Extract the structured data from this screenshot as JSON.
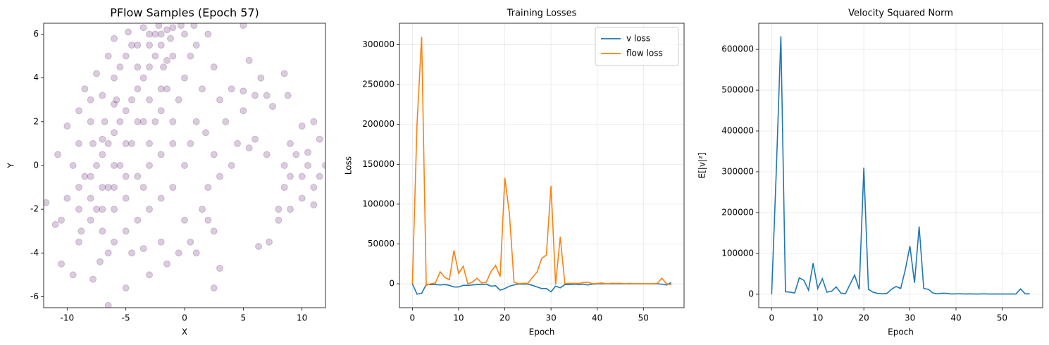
{
  "chart_data": [
    {
      "type": "scatter",
      "title": "PFlow Samples (Epoch 57)",
      "x_label": "X",
      "y_label": "Y",
      "xlim": [
        -12,
        12
      ],
      "ylim": [
        -6.5,
        6.5
      ],
      "xticks": [
        -10,
        -5,
        0,
        5,
        10
      ],
      "yticks": [
        -6,
        -4,
        -2,
        0,
        2,
        4,
        6
      ],
      "grid": false,
      "color": "#440154",
      "alpha": 0.2,
      "x": [
        -9,
        -8.5,
        -8,
        -7.5,
        -7,
        -7,
        -6.5,
        -6,
        -6,
        -5.5,
        -5,
        -5,
        -4.5,
        -4,
        -4,
        -3.5,
        -3,
        -3,
        -2.5,
        -2,
        -2,
        -1.5,
        -2.5,
        -3,
        -1.8,
        -1,
        -1.5,
        -2,
        -3.5,
        -4.5,
        -5.5,
        -6.5,
        -7.5,
        -8,
        -9,
        -10,
        -10.5,
        -9.5,
        -9,
        -8,
        -8,
        -7,
        -6,
        -5.5,
        -5,
        -4,
        -3.5,
        -1,
        0,
        0.5,
        0,
        -0.5,
        -1,
        -1,
        -2,
        -3,
        -4,
        -5,
        -6,
        -7,
        -6.5,
        -6,
        -5,
        -4,
        -3,
        -2,
        -1,
        0,
        0.5,
        1,
        1.5,
        1,
        2,
        2.5,
        0,
        -0.5,
        0.5,
        -2,
        -3.5,
        -5,
        -6.5,
        -7.8,
        -9.5,
        -10.5,
        -11,
        -11.8,
        -10.8,
        -10,
        -9,
        -8.5,
        -7.5,
        -6.5,
        -6,
        -4.8,
        -5.8,
        -6.8,
        -7.8,
        -8.8,
        -7.2,
        -4.5,
        -3,
        -1.5,
        1.5,
        2,
        2.5,
        1.8,
        3,
        4,
        3.5,
        4.5,
        4,
        3,
        2.5,
        2,
        3,
        2.5,
        1,
        5,
        5.5,
        5,
        6,
        6.5,
        7,
        7.5,
        7,
        6,
        5.5,
        6.3,
        7.2,
        8,
        8.5,
        9,
        9.5,
        10,
        10.5,
        11,
        11.5,
        12,
        10,
        11,
        9,
        8.5,
        9,
        8,
        10,
        11,
        8.8,
        8.5,
        10.5,
        11.5,
        -3,
        -2.5,
        -4,
        -2,
        -1.5,
        -3,
        -2.2,
        -1.2,
        -4.5,
        -6,
        -7,
        -5,
        -3.5,
        -8,
        -9,
        -6,
        -7,
        0.8,
        -0.3,
        5
      ],
      "y": [
        -1,
        -0.5,
        -1.5,
        0,
        0.5,
        -1,
        1,
        0,
        1.5,
        2,
        1,
        2.5,
        3,
        2,
        3.5,
        4,
        3,
        4.5,
        5,
        5.5,
        6,
        6.2,
        6,
        5.5,
        4.5,
        5,
        3.5,
        2.5,
        2,
        1,
        0,
        -1,
        -2,
        -2.5,
        -2,
        -1.5,
        -2.5,
        0,
        1,
        2,
        3,
        3.2,
        4,
        4.5,
        5,
        5.5,
        6.3,
        6.3,
        6,
        5,
        4,
        3,
        2,
        1,
        0.5,
        0,
        -0.5,
        -1.5,
        -2,
        -3,
        -4,
        -3.5,
        -3,
        -2.5,
        -2,
        -1.5,
        -1,
        0,
        1,
        2,
        3.5,
        5.5,
        6,
        4.5,
        -2.5,
        -4,
        -3.5,
        -3.5,
        -3.8,
        -5.6,
        -6.4,
        -5.2,
        -5,
        -4.5,
        -2.7,
        -1.7,
        0.5,
        1.8,
        2.5,
        3.5,
        4.2,
        5,
        5.8,
        6.1,
        3,
        2,
        1,
        -3,
        -4.4,
        -4,
        -5,
        -4.5,
        -2,
        -1,
        0.5,
        1.5,
        3,
        3.5,
        2,
        1,
        0,
        -0.5,
        -3,
        -2.5,
        -4.7,
        -5.6,
        -4,
        3.4,
        4.8,
        2.5,
        3.2,
        4,
        3.2,
        2.7,
        0.5,
        1.2,
        0.8,
        -3.7,
        -3.5,
        -2,
        -1,
        -0.5,
        0.5,
        -0.5,
        0,
        -1,
        -0.5,
        0,
        1.8,
        2,
        1,
        0,
        -2,
        -2.5,
        -1.5,
        -1.8,
        3.2,
        4.2,
        0.6,
        1.2,
        1,
        2,
        4.5,
        3.5,
        4.8,
        6,
        6.4,
        5.8,
        5.5,
        2.8,
        1.2,
        -0.5,
        -1,
        -0.5,
        -3.5,
        -1,
        -2,
        6.4,
        6.4,
        6.4
      ]
    },
    {
      "type": "line",
      "title": "Training Losses",
      "x_label": "Epoch",
      "y_label": "Loss",
      "xlim": [
        -2.8,
        58.8
      ],
      "ylim": [
        -30000,
        327000
      ],
      "xticks": [
        0,
        10,
        20,
        30,
        40,
        50
      ],
      "yticks": [
        0,
        50000,
        100000,
        150000,
        200000,
        250000,
        300000
      ],
      "grid": true,
      "legend": "upper right",
      "x": [
        0,
        1,
        2,
        3,
        4,
        5,
        6,
        7,
        8,
        9,
        10,
        11,
        12,
        13,
        14,
        15,
        16,
        17,
        18,
        19,
        20,
        21,
        22,
        23,
        24,
        25,
        26,
        27,
        28,
        29,
        30,
        31,
        32,
        33,
        34,
        35,
        36,
        37,
        38,
        39,
        40,
        41,
        42,
        43,
        44,
        45,
        46,
        47,
        48,
        49,
        50,
        51,
        52,
        53,
        54,
        55,
        56
      ],
      "series": [
        {
          "name": "v loss",
          "color": "#1f77b4",
          "values": [
            0,
            -13000,
            -12000,
            -1000,
            -1000,
            -1000,
            -1500,
            -1000,
            -2000,
            -4000,
            -4000,
            -2000,
            -2000,
            -1500,
            -1000,
            -1000,
            -500,
            -3000,
            -2500,
            -8000,
            -6000,
            -3000,
            -1500,
            -500,
            -500,
            -500,
            -2000,
            -4000,
            -6000,
            -6000,
            -10000,
            -3000,
            -5000,
            -1000,
            -1000,
            -500,
            -1000,
            -500,
            -1500,
            -500,
            0,
            0,
            0,
            0,
            0,
            0,
            0,
            0,
            0,
            0,
            0,
            0,
            0,
            0,
            -500,
            -1500,
            1500
          ]
        },
        {
          "name": "flow loss",
          "color": "#ff7f0e",
          "values": [
            0,
            200000,
            310000,
            -2000,
            0,
            1000,
            15000,
            8000,
            5000,
            42000,
            13000,
            22000,
            0,
            2000,
            7000,
            1000,
            2000,
            15000,
            23000,
            9000,
            133000,
            88000,
            2000,
            0,
            500,
            500,
            8000,
            15000,
            32000,
            36000,
            123000,
            -1000,
            59000,
            0,
            500,
            500,
            500,
            1500,
            2000,
            0,
            500,
            1000,
            0,
            500,
            500,
            500,
            0,
            500,
            0,
            0,
            0,
            0,
            0,
            500,
            7000,
            0,
            -1000
          ]
        }
      ]
    },
    {
      "type": "line",
      "title": "Velocity Squared Norm",
      "x_label": "Epoch",
      "y_label": "E[|v|²]",
      "xlim": [
        -2.8,
        58.8
      ],
      "ylim": [
        -33000,
        664000
      ],
      "xticks": [
        0,
        10,
        20,
        30,
        40,
        50
      ],
      "yticks": [
        0,
        100000,
        200000,
        300000,
        400000,
        500000,
        600000
      ],
      "grid": true,
      "x": [
        0,
        1,
        2,
        3,
        4,
        5,
        6,
        7,
        8,
        9,
        10,
        11,
        12,
        13,
        14,
        15,
        16,
        17,
        18,
        19,
        20,
        21,
        22,
        23,
        24,
        25,
        26,
        27,
        28,
        29,
        30,
        31,
        32,
        33,
        34,
        35,
        36,
        37,
        38,
        39,
        40,
        41,
        42,
        43,
        44,
        45,
        46,
        47,
        48,
        49,
        50,
        51,
        52,
        53,
        54,
        55,
        56
      ],
      "series": [
        {
          "color": "#1f77b4",
          "values": [
            0,
            300000,
            632000,
            6000,
            5000,
            3000,
            40000,
            34000,
            10000,
            76000,
            14000,
            38000,
            5000,
            7000,
            18000,
            3000,
            1000,
            24000,
            47000,
            12000,
            310000,
            12000,
            5000,
            2000,
            1000,
            2000,
            12000,
            19000,
            14000,
            60000,
            118000,
            28000,
            166000,
            14000,
            12000,
            3000,
            1000,
            2500,
            2000,
            500,
            1000,
            1000,
            500,
            1000,
            500,
            500,
            1000,
            500,
            500,
            500,
            500,
            500,
            500,
            500,
            13000,
            1000,
            1000
          ]
        }
      ]
    }
  ]
}
